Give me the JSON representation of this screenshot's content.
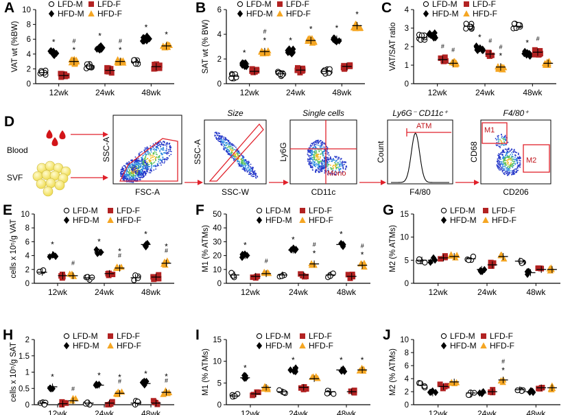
{
  "figure_label": "",
  "colors": {
    "lfd_m": "#ffffff",
    "hfd_m": "#000000",
    "lfd_f": "#b22222",
    "hfd_f": "#f5a623",
    "gate": "#e0202a"
  },
  "legend": {
    "lfd_m": "LFD-M",
    "hfd_m": "HFD-M",
    "lfd_f": "LFD-F",
    "hfd_f": "HFD-F"
  },
  "flow": {
    "label": "D",
    "sources": [
      "Blood",
      "SVF"
    ],
    "axes": [
      [
        "FSC-A",
        "SSC-A"
      ],
      [
        "SSC-W",
        "SSC-A"
      ],
      [
        "CD11c",
        "Ly6G"
      ],
      [
        "F4/80",
        "Count"
      ],
      [
        "CD206",
        "CD68"
      ]
    ],
    "titles": [
      "",
      "Size",
      "Single cells",
      "Ly6G⁻ CD11c⁺",
      "F4/80⁺"
    ],
    "gates": {
      "atm": "ATM",
      "mono": "Mono",
      "m1": "M1",
      "m2": "M2"
    }
  },
  "chart_data": [
    {
      "panel": "A",
      "type": "scatter",
      "ylabel": "VAT wt (%BW)",
      "ylim": [
        0,
        10
      ],
      "yticks": [
        0,
        2,
        4,
        6,
        8,
        10
      ],
      "categories": [
        "12wk",
        "24wk",
        "48wk"
      ],
      "series": [
        {
          "name": "LFD-M",
          "values": [
            1.5,
            2.4,
            2.9
          ]
        },
        {
          "name": "HFD-M",
          "values": [
            4.1,
            4.9,
            6.1
          ]
        },
        {
          "name": "LFD-F",
          "values": [
            1.1,
            1.8,
            2.3
          ]
        },
        {
          "name": "HFD-F",
          "values": [
            3.0,
            3.0,
            5.1
          ]
        }
      ],
      "annotations": [
        {
          "series": "HFD-M",
          "category": "12wk",
          "marks": [
            "*"
          ]
        },
        {
          "series": "HFD-F",
          "category": "12wk",
          "marks": [
            "#",
            "*"
          ]
        },
        {
          "series": "HFD-M",
          "category": "24wk",
          "marks": [
            "*"
          ]
        },
        {
          "series": "HFD-F",
          "category": "24wk",
          "marks": [
            "#",
            "*"
          ]
        },
        {
          "series": "HFD-M",
          "category": "48wk",
          "marks": [
            "*"
          ]
        },
        {
          "series": "HFD-F",
          "category": "48wk",
          "marks": [
            "*"
          ]
        }
      ]
    },
    {
      "panel": "B",
      "type": "scatter",
      "ylabel": "SAT wt (% BW)",
      "ylim": [
        0,
        6
      ],
      "yticks": [
        0,
        2,
        4,
        6
      ],
      "categories": [
        "12wk",
        "24wk",
        "48wk"
      ],
      "series": [
        {
          "name": "LFD-M",
          "values": [
            0.6,
            0.8,
            1.0
          ]
        },
        {
          "name": "HFD-M",
          "values": [
            1.6,
            2.6,
            3.6
          ]
        },
        {
          "name": "LFD-F",
          "values": [
            1.0,
            1.1,
            1.4
          ]
        },
        {
          "name": "HFD-F",
          "values": [
            2.6,
            3.5,
            4.7
          ]
        }
      ],
      "annotations": [
        {
          "series": "HFD-M",
          "category": "12wk",
          "marks": [
            "*"
          ]
        },
        {
          "series": "HFD-F",
          "category": "12wk",
          "marks": [
            "#",
            "*"
          ]
        },
        {
          "series": "HFD-M",
          "category": "24wk",
          "marks": [
            "*"
          ]
        },
        {
          "series": "HFD-F",
          "category": "24wk",
          "marks": [
            "*"
          ]
        },
        {
          "series": "HFD-M",
          "category": "48wk",
          "marks": [
            "*"
          ]
        },
        {
          "series": "HFD-F",
          "category": "48wk",
          "marks": [
            "*"
          ]
        }
      ]
    },
    {
      "panel": "C",
      "type": "scatter",
      "ylabel": "VAT/SAT ratio",
      "ylim": [
        0,
        4
      ],
      "yticks": [
        0,
        1,
        2,
        3,
        4
      ],
      "categories": [
        "12wk",
        "24wk",
        "48wk"
      ],
      "series": [
        {
          "name": "LFD-M",
          "values": [
            2.5,
            3.1,
            3.1
          ]
        },
        {
          "name": "HFD-M",
          "values": [
            2.6,
            1.9,
            1.6
          ]
        },
        {
          "name": "LFD-F",
          "values": [
            1.3,
            1.6,
            1.7
          ]
        },
        {
          "name": "HFD-F",
          "values": [
            1.1,
            0.9,
            1.1
          ]
        }
      ],
      "annotations": [
        {
          "series": "LFD-F",
          "category": "12wk",
          "marks": [
            "#"
          ]
        },
        {
          "series": "HFD-F",
          "category": "12wk",
          "marks": [
            "#"
          ]
        },
        {
          "series": "HFD-M",
          "category": "24wk",
          "marks": [
            "*"
          ]
        },
        {
          "series": "LFD-F",
          "category": "24wk",
          "marks": [
            "#"
          ]
        },
        {
          "series": "HFD-F",
          "category": "24wk",
          "marks": [
            "#",
            "*"
          ]
        },
        {
          "series": "HFD-M",
          "category": "48wk",
          "marks": [
            "*"
          ]
        },
        {
          "series": "LFD-F",
          "category": "48wk",
          "marks": [
            "#"
          ]
        }
      ]
    },
    {
      "panel": "E",
      "type": "scatter",
      "ylabel": "cells x 10⁵/g VAT",
      "ylim": [
        0,
        10
      ],
      "yticks": [
        0,
        2,
        4,
        6,
        8,
        10
      ],
      "categories": [
        "12wk",
        "24wk",
        "48wk"
      ],
      "series": [
        {
          "name": "LFD-M",
          "values": [
            1.6,
            0.8,
            0.8
          ]
        },
        {
          "name": "HFD-M",
          "values": [
            4.1,
            4.5,
            5.6
          ]
        },
        {
          "name": "LFD-F",
          "values": [
            1.1,
            1.4,
            0.9
          ]
        },
        {
          "name": "HFD-F",
          "values": [
            1.1,
            2.2,
            2.9
          ]
        }
      ],
      "annotations": [
        {
          "series": "HFD-M",
          "category": "12wk",
          "marks": [
            "*"
          ]
        },
        {
          "series": "HFD-F",
          "category": "12wk",
          "marks": [
            "#"
          ]
        },
        {
          "series": "HFD-M",
          "category": "24wk",
          "marks": [
            "*"
          ]
        },
        {
          "series": "HFD-F",
          "category": "24wk",
          "marks": [
            "*",
            "#"
          ]
        },
        {
          "series": "HFD-M",
          "category": "48wk",
          "marks": [
            "*"
          ]
        },
        {
          "series": "HFD-F",
          "category": "48wk",
          "marks": [
            "*",
            "#"
          ]
        }
      ]
    },
    {
      "panel": "F",
      "type": "scatter",
      "ylabel": "M1 (% ATMs)",
      "ylim": [
        0,
        50
      ],
      "yticks": [
        0,
        10,
        20,
        30,
        40,
        50
      ],
      "categories": [
        "12wk",
        "24wk",
        "48wk"
      ],
      "series": [
        {
          "name": "LFD-M",
          "values": [
            6,
            6,
            6
          ]
        },
        {
          "name": "HFD-M",
          "values": [
            20,
            24,
            28
          ]
        },
        {
          "name": "LFD-F",
          "values": [
            5,
            6,
            5
          ]
        },
        {
          "name": "HFD-F",
          "values": [
            7,
            14,
            13
          ]
        }
      ],
      "annotations": [
        {
          "series": "HFD-M",
          "category": "12wk",
          "marks": [
            "*"
          ]
        },
        {
          "series": "HFD-F",
          "category": "12wk",
          "marks": [
            "#"
          ]
        },
        {
          "series": "HFD-M",
          "category": "24wk",
          "marks": [
            "*"
          ]
        },
        {
          "series": "HFD-F",
          "category": "24wk",
          "marks": [
            "#",
            "*"
          ]
        },
        {
          "series": "HFD-M",
          "category": "48wk",
          "marks": [
            "*"
          ]
        },
        {
          "series": "HFD-F",
          "category": "48wk",
          "marks": [
            "#",
            "*"
          ]
        }
      ]
    },
    {
      "panel": "G",
      "type": "scatter",
      "ylabel": "M2 (% ATMs)",
      "ylim": [
        0,
        15
      ],
      "yticks": [
        0,
        5,
        10,
        15
      ],
      "categories": [
        "12wk",
        "24wk",
        "48wk"
      ],
      "series": [
        {
          "name": "LFD-M",
          "values": [
            5,
            5.3,
            4.8
          ]
        },
        {
          "name": "HFD-M",
          "values": [
            5,
            3,
            2.3
          ]
        },
        {
          "name": "LFD-F",
          "values": [
            5.5,
            4,
            3
          ]
        },
        {
          "name": "HFD-F",
          "values": [
            5.8,
            5.8,
            3
          ]
        }
      ],
      "annotations": []
    },
    {
      "panel": "H",
      "type": "scatter",
      "ylabel": "cells x 10⁵/g SAT",
      "ylim": [
        0,
        2
      ],
      "yticks": [
        0,
        0.5,
        1,
        1.5,
        2
      ],
      "categories": [
        "12wk",
        "24wk",
        "48wk"
      ],
      "series": [
        {
          "name": "LFD-M",
          "values": [
            0.05,
            0.05,
            0.05
          ]
        },
        {
          "name": "HFD-M",
          "values": [
            0.55,
            0.6,
            0.65
          ]
        },
        {
          "name": "LFD-F",
          "values": [
            0.03,
            0.05,
            0.05
          ]
        },
        {
          "name": "HFD-F",
          "values": [
            0.12,
            0.35,
            0.38
          ]
        }
      ],
      "annotations": [
        {
          "series": "HFD-M",
          "category": "12wk",
          "marks": [
            "*"
          ]
        },
        {
          "series": "HFD-F",
          "category": "12wk",
          "marks": [
            "#"
          ]
        },
        {
          "series": "HFD-M",
          "category": "24wk",
          "marks": [
            "*"
          ]
        },
        {
          "series": "HFD-F",
          "category": "24wk",
          "marks": [
            "*",
            "#"
          ]
        },
        {
          "series": "HFD-M",
          "category": "48wk",
          "marks": [
            "*"
          ]
        },
        {
          "series": "HFD-F",
          "category": "48wk",
          "marks": [
            "*",
            "#"
          ]
        }
      ]
    },
    {
      "panel": "I",
      "type": "scatter",
      "ylabel": "M1 (% ATMs)",
      "ylim": [
        0,
        15
      ],
      "yticks": [
        0,
        5,
        10,
        15
      ],
      "categories": [
        "12wk",
        "24wk",
        "48wk"
      ],
      "series": [
        {
          "name": "LFD-M",
          "values": [
            2,
            3,
            3
          ]
        },
        {
          "name": "HFD-M",
          "values": [
            6.2,
            8,
            8
          ]
        },
        {
          "name": "LFD-F",
          "values": [
            2.5,
            4,
            3
          ]
        },
        {
          "name": "HFD-F",
          "values": [
            4,
            6,
            8
          ]
        }
      ],
      "annotations": [
        {
          "series": "HFD-M",
          "category": "12wk",
          "marks": [
            "*"
          ]
        },
        {
          "series": "HFD-M",
          "category": "24wk",
          "marks": [
            "*"
          ]
        },
        {
          "series": "HFD-M",
          "category": "48wk",
          "marks": [
            "*"
          ]
        },
        {
          "series": "HFD-F",
          "category": "48wk",
          "marks": [
            "*"
          ]
        }
      ]
    },
    {
      "panel": "J",
      "type": "scatter",
      "ylabel": "M2 (% ATMs)",
      "ylim": [
        0,
        10
      ],
      "yticks": [
        0,
        2,
        4,
        6,
        8,
        10
      ],
      "categories": [
        "12wk",
        "24wk",
        "48wk"
      ],
      "series": [
        {
          "name": "LFD-M",
          "values": [
            3,
            1.8,
            2.3
          ]
        },
        {
          "name": "HFD-M",
          "values": [
            1.8,
            1.8,
            2
          ]
        },
        {
          "name": "LFD-F",
          "values": [
            2.8,
            2,
            2.6
          ]
        },
        {
          "name": "HFD-F",
          "values": [
            3.5,
            3.8,
            2.6
          ]
        }
      ],
      "annotations": [
        {
          "series": "HFD-F",
          "category": "24wk",
          "marks": [
            "#",
            "*"
          ]
        }
      ]
    }
  ]
}
